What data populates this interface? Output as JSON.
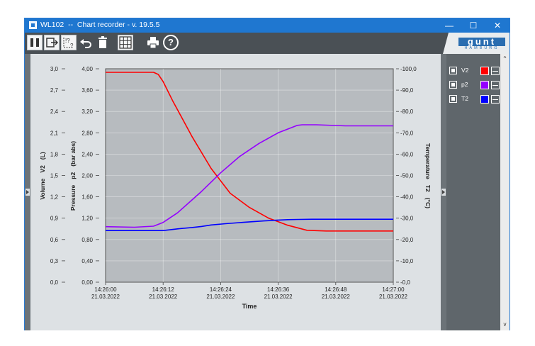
{
  "window": {
    "title": "WL102  --  Chart recorder - v. 19.5.5",
    "minimize_label": "—",
    "maximize_label": "☐",
    "close_label": "✕"
  },
  "toolbar": {
    "pause_icon": "pause-icon",
    "export_icon": "export-icon",
    "help_cursor_icon": "context-help-icon",
    "undo_icon": "undo-icon",
    "delete_icon": "trash-icon",
    "grid_icon": "grid-icon",
    "print_icon": "printer-icon",
    "help_label": "?"
  },
  "logo": {
    "brand": "gunt",
    "sub": "HAMBURG"
  },
  "legend": [
    {
      "name": "V2",
      "color": "#ff0000"
    },
    {
      "name": "p2",
      "color": "#9400ff"
    },
    {
      "name": "T2",
      "color": "#0000ff"
    }
  ],
  "scroll": {
    "up": "^",
    "down": "v"
  },
  "chart_data": {
    "type": "line",
    "xlabel": "Time",
    "x_ticks": [
      {
        "time": "14:26:00",
        "date": "21.03.2022"
      },
      {
        "time": "14:26:12",
        "date": "21.03.2022"
      },
      {
        "time": "14:26:24",
        "date": "21.03.2022"
      },
      {
        "time": "14:26:36",
        "date": "21.03.2022"
      },
      {
        "time": "14:26:48",
        "date": "21.03.2022"
      },
      {
        "time": "14:27:00",
        "date": "21.03.2022"
      }
    ],
    "axes": {
      "volume": {
        "label_qty": "Volume",
        "label_sym": "V2",
        "label_unit": "(L)",
        "ylim": [
          0,
          3
        ],
        "ticks": [
          "0,0",
          "0,3",
          "0,6",
          "0,9",
          "1,2",
          "1,5",
          "1,8",
          "2,1",
          "2,4",
          "2,7",
          "3,0"
        ]
      },
      "pressure": {
        "label_qty": "Pressure",
        "label_sym": "p2",
        "label_unit": "(bar abs)",
        "ylim": [
          0,
          4
        ],
        "ticks": [
          "0,00",
          "0,40",
          "0,80",
          "1,20",
          "1,60",
          "2,00",
          "2,40",
          "2,80",
          "3,20",
          "3,60",
          "4,00"
        ]
      },
      "temperature": {
        "label_qty": "Temperature",
        "label_sym": "T2",
        "label_unit": "(°C)",
        "ylim": [
          0,
          -100
        ],
        "ticks": [
          "-0,0",
          "-10,0",
          "-20,0",
          "-30,0",
          "-40,0",
          "-50,0",
          "-60,0",
          "-70,0",
          "-80,0",
          "-90,0",
          "-100,0"
        ]
      }
    },
    "grid": true,
    "series": [
      {
        "name": "V2",
        "axis": "volume",
        "color": "#ff0000",
        "x": [
          0,
          10,
          11,
          12,
          14,
          18,
          22,
          26,
          30,
          34,
          38,
          42,
          46,
          50,
          54,
          60
        ],
        "y": [
          2.95,
          2.95,
          2.92,
          2.82,
          2.55,
          2.05,
          1.6,
          1.25,
          1.05,
          0.9,
          0.8,
          0.73,
          0.72,
          0.72,
          0.72,
          0.72
        ]
      },
      {
        "name": "p2",
        "axis": "pressure",
        "color": "#9400ff",
        "x": [
          0,
          6,
          10,
          12,
          15,
          20,
          24,
          28,
          32,
          36,
          40,
          41,
          44,
          50,
          60
        ],
        "y": [
          1.04,
          1.03,
          1.05,
          1.12,
          1.3,
          1.7,
          2.05,
          2.36,
          2.6,
          2.8,
          2.94,
          2.95,
          2.95,
          2.93,
          2.93
        ]
      },
      {
        "name": "T2",
        "axis": "temperature",
        "color": "#0000ff",
        "x": [
          0,
          12,
          15,
          18,
          20,
          22,
          25,
          29,
          33,
          36,
          38,
          40,
          43,
          48,
          60
        ],
        "y": [
          -24.2,
          -24.2,
          -25,
          -25.6,
          -26.1,
          -26.8,
          -27.4,
          -28.1,
          -28.7,
          -29.1,
          -29.3,
          -29.4,
          -29.5,
          -29.5,
          -29.5
        ]
      }
    ]
  }
}
